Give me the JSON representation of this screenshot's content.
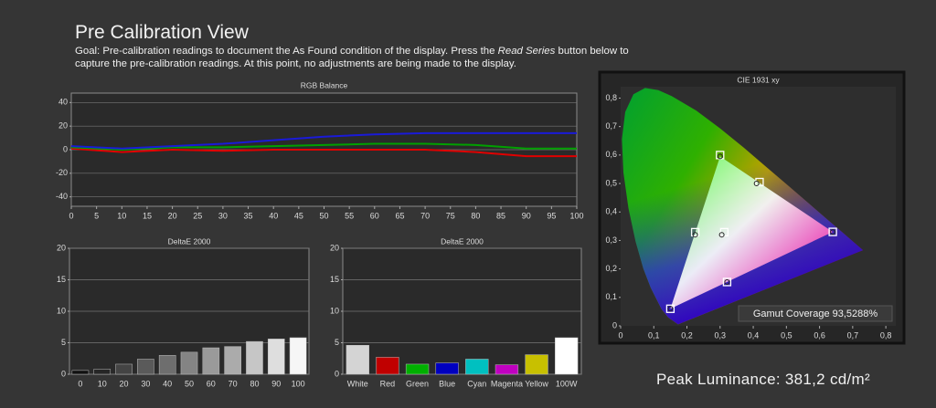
{
  "header": {
    "title": "Pre Calibration View",
    "goal": [
      "Goal: Pre-calibration readings to document the As Found condition of the display. Press the ",
      "Read Series",
      " button below to capture the pre-calibration readings. At this point, no adjustments are being made to the display."
    ]
  },
  "footer": {
    "peak_luminance": "Peak Luminance: 381,2 cd/m²"
  },
  "chart_data": [
    {
      "type": "line",
      "title": "RGB Balance",
      "x": [
        0,
        10,
        20,
        30,
        40,
        50,
        60,
        70,
        80,
        90,
        100
      ],
      "series": [
        {
          "color": "#e00000",
          "values": [
            1,
            -2,
            0,
            -1,
            0,
            0,
            0,
            0,
            -2,
            -5.5,
            -5.5
          ]
        },
        {
          "color": "#00a000",
          "values": [
            2,
            0,
            2,
            2,
            3,
            4,
            5,
            5,
            4,
            1,
            1
          ]
        },
        {
          "color": "#1a1ad8",
          "values": [
            3,
            1,
            3,
            5,
            8,
            11,
            13,
            14,
            14,
            14,
            14
          ]
        }
      ],
      "xlim": [
        0,
        100
      ],
      "xticks": [
        0,
        5,
        10,
        15,
        20,
        25,
        30,
        35,
        40,
        45,
        50,
        55,
        60,
        65,
        70,
        75,
        80,
        85,
        90,
        95,
        100
      ],
      "ylim": [
        -48,
        48
      ],
      "yticks": [
        40,
        20,
        0,
        -20,
        -40
      ],
      "grid": true
    },
    {
      "type": "bar",
      "title": "DeltaE 2000",
      "categories": [
        "0",
        "10",
        "20",
        "30",
        "40",
        "50",
        "60",
        "70",
        "80",
        "90",
        "100"
      ],
      "values": [
        0.6,
        0.8,
        1.6,
        2.4,
        3,
        3.5,
        4.2,
        4.4,
        5.2,
        5.6,
        5.8
      ],
      "colors": [
        "#111111",
        "#262626",
        "#444444",
        "#5a5a5a",
        "#6e6e6e",
        "#848484",
        "#9a9a9a",
        "#ababab",
        "#c6c6c6",
        "#dedede",
        "#f6f6f6"
      ],
      "ylim": [
        0,
        20
      ],
      "yticks": [
        0,
        5,
        10,
        15,
        20
      ],
      "grid": true
    },
    {
      "type": "bar",
      "title": "DeltaE 2000",
      "categories": [
        "White",
        "Red",
        "Green",
        "Blue",
        "Cyan",
        "Magenta",
        "Yellow",
        "100W"
      ],
      "values": [
        4.6,
        2.7,
        1.6,
        1.8,
        2.4,
        1.5,
        3.1,
        5.8
      ],
      "colors": [
        "#d4d4d4",
        "#c00000",
        "#00b000",
        "#0000c0",
        "#00c0c0",
        "#c000c0",
        "#c8c000",
        "#ffffff"
      ],
      "ylim": [
        0,
        20
      ],
      "yticks": [
        0,
        5,
        10,
        15,
        20
      ],
      "grid": true
    },
    {
      "type": "scatter",
      "title": "CIE 1931 xy",
      "annotation": "Gamut Coverage 93,5288%",
      "series": [
        {
          "marker": "square",
          "x": [
            0.64,
            0.3,
            0.15,
            0.225,
            0.321,
            0.419,
            0.3127
          ],
          "y": [
            0.33,
            0.6,
            0.06,
            0.329,
            0.154,
            0.505,
            0.329
          ]
        },
        {
          "marker": "circle",
          "x": [
            0.64,
            0.3,
            0.15,
            0.225,
            0.321,
            0.41,
            0.305
          ],
          "y": [
            0.33,
            0.595,
            0.06,
            0.32,
            0.154,
            0.5,
            0.32
          ]
        }
      ],
      "xlim": [
        0,
        0.83
      ],
      "xticks": [
        0,
        {
          "value": 0.1,
          "label": "0,1"
        },
        {
          "value": 0.2,
          "label": "0,2"
        },
        {
          "value": 0.3,
          "label": "0,3"
        },
        {
          "value": 0.4,
          "label": "0,4"
        },
        {
          "value": 0.5,
          "label": "0,5"
        },
        {
          "value": 0.6,
          "label": "0,6"
        },
        {
          "value": 0.7,
          "label": "0,7"
        },
        {
          "value": 0.8,
          "label": "0,8"
        }
      ],
      "ylim": [
        0,
        0.84
      ],
      "yticks": [
        0,
        {
          "value": 0.1,
          "label": "0,1"
        },
        {
          "value": 0.2,
          "label": "0,2"
        },
        {
          "value": 0.3,
          "label": "0,3"
        },
        {
          "value": 0.4,
          "label": "0,4"
        },
        {
          "value": 0.5,
          "label": "0,5"
        },
        {
          "value": 0.6,
          "label": "0,6"
        },
        {
          "value": 0.7,
          "label": "0,7"
        },
        {
          "value": 0.8,
          "label": "0,8"
        }
      ],
      "grid": false
    }
  ]
}
